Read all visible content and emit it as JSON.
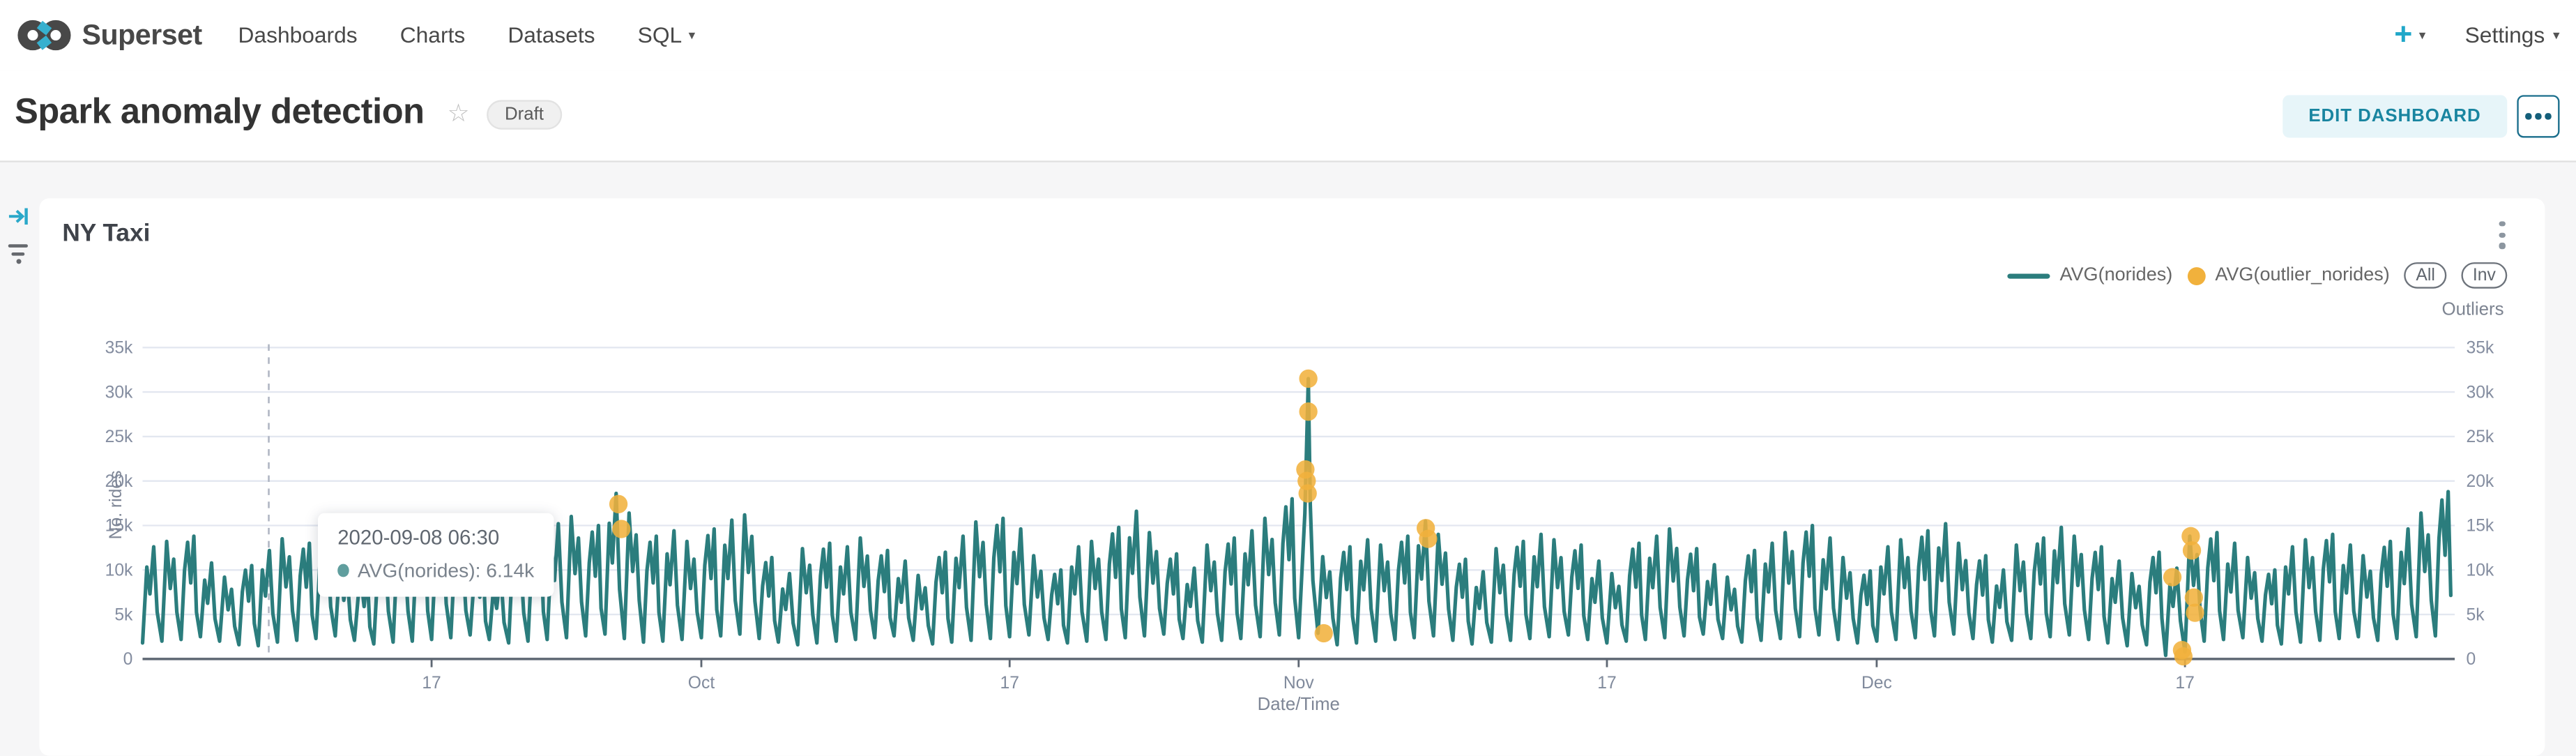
{
  "navbar": {
    "brand": "Superset",
    "items": [
      {
        "label": "Dashboards"
      },
      {
        "label": "Charts"
      },
      {
        "label": "Datasets"
      },
      {
        "label": "SQL"
      }
    ],
    "plus_label": "+",
    "settings_label": "Settings"
  },
  "header": {
    "title": "Spark anomaly detection",
    "status_badge": "Draft",
    "edit_button": "EDIT DASHBOARD"
  },
  "chart_card": {
    "title": "NY Taxi",
    "legend": [
      {
        "label": "AVG(norides)",
        "type": "line",
        "color": "#2b7d7d"
      },
      {
        "label": "AVG(outlier_norides)",
        "type": "dot",
        "color": "#f1b13c"
      }
    ],
    "legend_buttons": [
      "All",
      "Inv"
    ],
    "right_axis_title": "Outliers"
  },
  "tooltip": {
    "date": "2020-09-08 06:30",
    "series": "AVG(norides)",
    "value": "6.14k",
    "text": "AVG(norides): 6.14k",
    "color": "#2b7d7d"
  },
  "chart_data": {
    "type": "line",
    "title": "NY Taxi",
    "xlabel": "Date/Time",
    "ylabel": "No. rides",
    "y2label": "Outliers",
    "x_range": [
      "2020-09-02",
      "2020-12-31"
    ],
    "days": 120,
    "x_tick_labels": [
      {
        "day": 15,
        "label": "17"
      },
      {
        "day": 29,
        "label": "Oct"
      },
      {
        "day": 45,
        "label": "17"
      },
      {
        "day": 60,
        "label": "Nov"
      },
      {
        "day": 76,
        "label": "17"
      },
      {
        "day": 90,
        "label": "Dec"
      },
      {
        "day": 106,
        "label": "17"
      }
    ],
    "ylim": [
      0,
      35000
    ],
    "y_tick_step": 5000,
    "y_tick_labels": [
      "0",
      "5k",
      "10k",
      "15k",
      "20k",
      "25k",
      "30k",
      "35k"
    ],
    "grid": true,
    "legend_position": "top-right",
    "crosshair_day": 6.55,
    "series": [
      {
        "name": "AVG(norides)",
        "color": "#2b7d7d",
        "units": "thousands of rides, per-day [peak, trough]",
        "daily_peak_trough": [
          [
            12.6,
            1.8
          ],
          [
            13.2,
            2.0
          ],
          [
            13.8,
            2.2
          ],
          [
            10.8,
            2.5
          ],
          [
            9.2,
            2.0
          ],
          [
            10.5,
            1.6
          ],
          [
            12.2,
            1.5
          ],
          [
            13.5,
            1.9
          ],
          [
            13.0,
            2.1
          ],
          [
            14.0,
            2.3
          ],
          [
            11.0,
            2.6
          ],
          [
            9.5,
            2.1
          ],
          [
            12.8,
            1.7
          ],
          [
            13.4,
            1.9
          ],
          [
            14.2,
            2.0
          ],
          [
            14.8,
            2.2
          ],
          [
            13.6,
            2.4
          ],
          [
            11.2,
            2.7
          ],
          [
            9.8,
            2.2
          ],
          [
            13.0,
            1.8
          ],
          [
            14.0,
            2.0
          ],
          [
            15.2,
            2.2
          ],
          [
            16.0,
            2.4
          ],
          [
            15.0,
            2.6
          ],
          [
            18.6,
            2.8
          ],
          [
            16.4,
            2.3
          ],
          [
            13.8,
            1.9
          ],
          [
            14.4,
            2.0
          ],
          [
            13.2,
            2.2
          ],
          [
            14.6,
            2.4
          ],
          [
            15.6,
            2.6
          ],
          [
            16.2,
            2.8
          ],
          [
            11.4,
            2.3
          ],
          [
            9.6,
            1.9
          ],
          [
            12.4,
            1.6
          ],
          [
            13.0,
            1.8
          ],
          [
            12.6,
            2.0
          ],
          [
            13.6,
            2.2
          ],
          [
            12.2,
            2.4
          ],
          [
            11.0,
            2.6
          ],
          [
            9.4,
            2.1
          ],
          [
            12.0,
            1.7
          ],
          [
            13.8,
            1.9
          ],
          [
            15.4,
            2.1
          ],
          [
            15.8,
            2.3
          ],
          [
            14.6,
            2.5
          ],
          [
            11.6,
            2.7
          ],
          [
            10.0,
            2.2
          ],
          [
            12.6,
            1.8
          ],
          [
            13.2,
            2.0
          ],
          [
            14.8,
            2.2
          ],
          [
            16.6,
            2.4
          ],
          [
            14.2,
            2.6
          ],
          [
            11.8,
            2.8
          ],
          [
            10.2,
            2.3
          ],
          [
            12.8,
            1.9
          ],
          [
            13.6,
            2.1
          ],
          [
            14.4,
            2.3
          ],
          [
            15.8,
            2.5
          ],
          [
            18.0,
            2.7
          ],
          [
            31.5,
            2.4
          ],
          [
            11.5,
            2.9
          ],
          [
            12.6,
            1.6
          ],
          [
            13.4,
            1.8
          ],
          [
            12.8,
            2.0
          ],
          [
            13.8,
            2.2
          ],
          [
            15.5,
            2.4
          ],
          [
            14.0,
            2.6
          ],
          [
            11.2,
            2.1
          ],
          [
            9.8,
            1.7
          ],
          [
            12.4,
            1.9
          ],
          [
            13.2,
            2.1
          ],
          [
            14.0,
            2.3
          ],
          [
            13.4,
            2.5
          ],
          [
            12.8,
            2.7
          ],
          [
            11.0,
            2.2
          ],
          [
            9.6,
            1.8
          ],
          [
            13.0,
            2.0
          ],
          [
            13.8,
            2.2
          ],
          [
            14.6,
            2.4
          ],
          [
            12.4,
            2.6
          ],
          [
            10.6,
            2.8
          ],
          [
            9.2,
            2.3
          ],
          [
            12.2,
            1.9
          ],
          [
            13.0,
            2.1
          ],
          [
            14.2,
            2.3
          ],
          [
            15.0,
            2.5
          ],
          [
            13.6,
            2.7
          ],
          [
            11.4,
            2.2
          ],
          [
            9.9,
            1.8
          ],
          [
            12.6,
            2.0
          ],
          [
            13.4,
            2.2
          ],
          [
            14.4,
            2.4
          ],
          [
            15.2,
            2.6
          ],
          [
            13.0,
            2.8
          ],
          [
            11.6,
            2.3
          ],
          [
            10.0,
            1.9
          ],
          [
            12.8,
            2.1
          ],
          [
            13.6,
            2.3
          ],
          [
            14.8,
            2.5
          ],
          [
            13.8,
            2.7
          ],
          [
            12.6,
            2.2
          ],
          [
            11.0,
            1.8
          ],
          [
            9.6,
            1.5
          ],
          [
            12.0,
            1.6
          ],
          [
            10.2,
            0.4
          ],
          [
            13.8,
            0.8
          ],
          [
            14.2,
            2.0
          ],
          [
            13.0,
            2.2
          ],
          [
            11.4,
            2.4
          ],
          [
            10.0,
            2.0
          ],
          [
            12.6,
            1.7
          ],
          [
            13.4,
            1.9
          ],
          [
            14.0,
            2.1
          ],
          [
            12.8,
            2.3
          ],
          [
            11.6,
            2.5
          ],
          [
            13.2,
            2.1
          ],
          [
            14.6,
            2.3
          ],
          [
            16.4,
            2.5
          ],
          [
            18.8,
            2.6
          ]
        ]
      },
      {
        "name": "AVG(outlier_norides)",
        "color": "#f1b13c",
        "units": "thousands of rides, points [day, value]",
        "points": [
          [
            24.7,
            17.4
          ],
          [
            24.85,
            14.6
          ],
          [
            60.35,
            21.3
          ],
          [
            60.42,
            20.0
          ],
          [
            60.47,
            18.6
          ],
          [
            60.5,
            27.8
          ],
          [
            60.5,
            31.5
          ],
          [
            61.3,
            2.9
          ],
          [
            66.6,
            14.7
          ],
          [
            66.72,
            13.5
          ],
          [
            105.35,
            9.2
          ],
          [
            105.85,
            1.0
          ],
          [
            105.92,
            0.3
          ],
          [
            106.3,
            13.8
          ],
          [
            106.36,
            12.2
          ],
          [
            106.46,
            6.9
          ],
          [
            106.52,
            5.2
          ]
        ]
      }
    ]
  }
}
